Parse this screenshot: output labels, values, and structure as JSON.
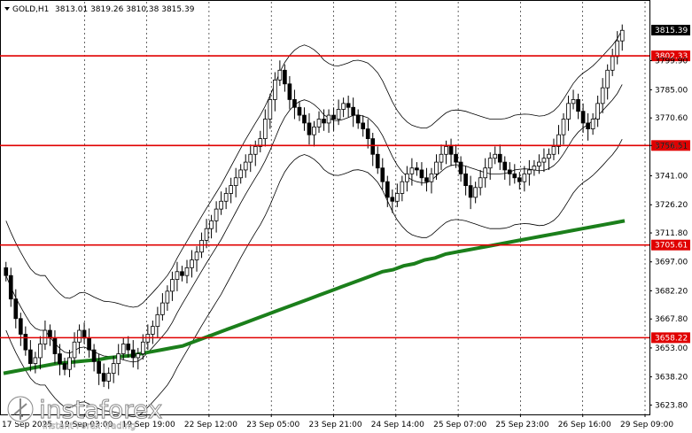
{
  "header": {
    "symbol": "GOLD,H1",
    "ohlc": "3813.01 3819.26 3810.38 3815.39"
  },
  "watermark": {
    "brand": "instaforex",
    "tagline": "Instant Forex Trading"
  },
  "colors": {
    "background": "#ffffff",
    "level_line": "#e00000",
    "ma_line": "#1b7f1b",
    "candles": "#000000",
    "bands": "#000000",
    "grid": "#000000",
    "current_price_box": "#000000"
  },
  "chart_data": {
    "type": "candlestick",
    "title": "GOLD,H1",
    "ylim": [
      3619,
      3830
    ],
    "y_ticks": [
      "3799.90",
      "3785.00",
      "3770.60",
      "3756.51",
      "3741.00",
      "3726.20",
      "3711.80",
      "3697.00",
      "3682.20",
      "3667.80",
      "3653.00",
      "3638.20",
      "3623.80"
    ],
    "x_ticks": [
      "17 Sep 2025",
      "19 Sep 03:00",
      "19 Sep 19:00",
      "22 Sep 12:00",
      "23 Sep 05:00",
      "23 Sep 21:00",
      "24 Sep 14:00",
      "25 Sep 07:00",
      "25 Sep 23:00",
      "26 Sep 16:00",
      "29 Sep 09:00"
    ],
    "grid": "vertical dotted",
    "levels": [
      {
        "label": "3802.33",
        "value": 3802.33
      },
      {
        "label": "3756.51",
        "value": 3756.51
      },
      {
        "label": "3705.61",
        "value": 3705.61
      },
      {
        "label": "3658.22",
        "value": 3658.22
      }
    ],
    "current_price": "3815.39",
    "closes": [
      3690,
      3678,
      3668,
      3660,
      3652,
      3645,
      3648,
      3655,
      3662,
      3658,
      3650,
      3645,
      3642,
      3648,
      3656,
      3662,
      3658,
      3652,
      3646,
      3640,
      3636,
      3640,
      3645,
      3650,
      3655,
      3652,
      3648,
      3650,
      3656,
      3660,
      3664,
      3670,
      3676,
      3682,
      3688,
      3692,
      3690,
      3694,
      3698,
      3702,
      3708,
      3714,
      3718,
      3724,
      3728,
      3732,
      3736,
      3740,
      3744,
      3748,
      3752,
      3756,
      3760,
      3770,
      3780,
      3790,
      3795,
      3788,
      3780,
      3776,
      3772,
      3768,
      3762,
      3766,
      3770,
      3768,
      3772,
      3770,
      3775,
      3778,
      3776,
      3772,
      3768,
      3765,
      3760,
      3752,
      3745,
      3738,
      3730,
      3728,
      3732,
      3738,
      3742,
      3745,
      3744,
      3740,
      3738,
      3742,
      3748,
      3752,
      3756,
      3752,
      3748,
      3742,
      3736,
      3730,
      3735,
      3740,
      3745,
      3750,
      3752,
      3748,
      3744,
      3742,
      3740,
      3738,
      3742,
      3744,
      3746,
      3748,
      3750,
      3752,
      3756,
      3762,
      3770,
      3778,
      3780,
      3774,
      3768,
      3765,
      3770,
      3778,
      3786,
      3795,
      3802,
      3810,
      3815.39
    ],
    "ma_values": [
      3640,
      3641,
      3642,
      3643,
      3644,
      3645,
      3645.5,
      3646,
      3646.5,
      3647,
      3648,
      3648.5,
      3649,
      3650,
      3651,
      3652,
      3653,
      3654,
      3656,
      3658,
      3660,
      3662,
      3664,
      3666,
      3668,
      3670,
      3672,
      3674,
      3676,
      3678,
      3680,
      3682,
      3684,
      3686,
      3688,
      3690,
      3692,
      3693,
      3695,
      3696,
      3698,
      3699,
      3701,
      3702,
      3703,
      3704,
      3705,
      3706,
      3707,
      3708,
      3709,
      3710,
      3711,
      3712,
      3713,
      3714,
      3715,
      3716,
      3717,
      3718
    ]
  }
}
